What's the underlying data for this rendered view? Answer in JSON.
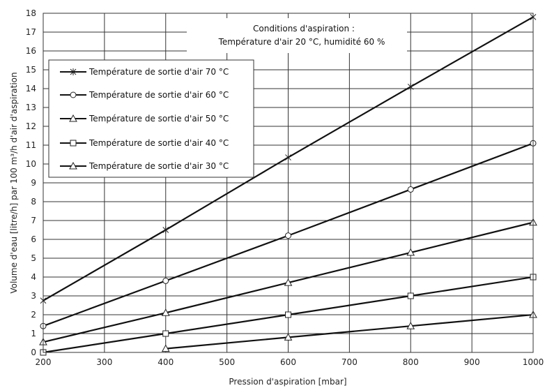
{
  "chart_data": {
    "type": "line",
    "xlabel": "Pression d'aspiration [mbar]",
    "ylabel": "Volume d'eau [litre/h] par 100 m³/h d'air d'aspiration",
    "xlim": [
      200,
      1000
    ],
    "ylim": [
      0,
      18
    ],
    "x_ticks": [
      200,
      300,
      400,
      500,
      600,
      700,
      800,
      900,
      1000
    ],
    "y_ticks": [
      0,
      1,
      2,
      3,
      4,
      5,
      6,
      7,
      8,
      9,
      10,
      11,
      12,
      13,
      14,
      15,
      16,
      17,
      18
    ],
    "grid": true,
    "legend_position": "upper-left",
    "annotation": {
      "line1": "Conditions d'aspiration :",
      "line2": "Température d'air 20 °C, humidité 60 %"
    },
    "series": [
      {
        "name": "Température de sortie d'air 70 °C",
        "marker": "star",
        "x": [
          200,
          400,
          600,
          800,
          1000
        ],
        "y": [
          2.75,
          6.5,
          10.35,
          14.1,
          17.8
        ]
      },
      {
        "name": "Température de sortie d'air 60 °C",
        "marker": "circle",
        "x": [
          200,
          400,
          600,
          800,
          1000
        ],
        "y": [
          1.4,
          3.8,
          6.2,
          8.65,
          11.1
        ]
      },
      {
        "name": "Température de sortie d'air 50 °C",
        "marker": "triangle",
        "x": [
          200,
          400,
          600,
          800,
          1000
        ],
        "y": [
          0.55,
          2.1,
          3.7,
          5.3,
          6.9
        ]
      },
      {
        "name": "Température de sortie d'air 40 °C",
        "marker": "square",
        "x": [
          200,
          400,
          600,
          800,
          1000
        ],
        "y": [
          0.0,
          1.0,
          2.0,
          3.0,
          4.0
        ]
      },
      {
        "name": "Température de sortie d'air 30 °C",
        "marker": "triangle",
        "x": [
          400,
          600,
          800,
          1000
        ],
        "y": [
          0.2,
          0.8,
          1.4,
          2.0
        ]
      }
    ]
  }
}
